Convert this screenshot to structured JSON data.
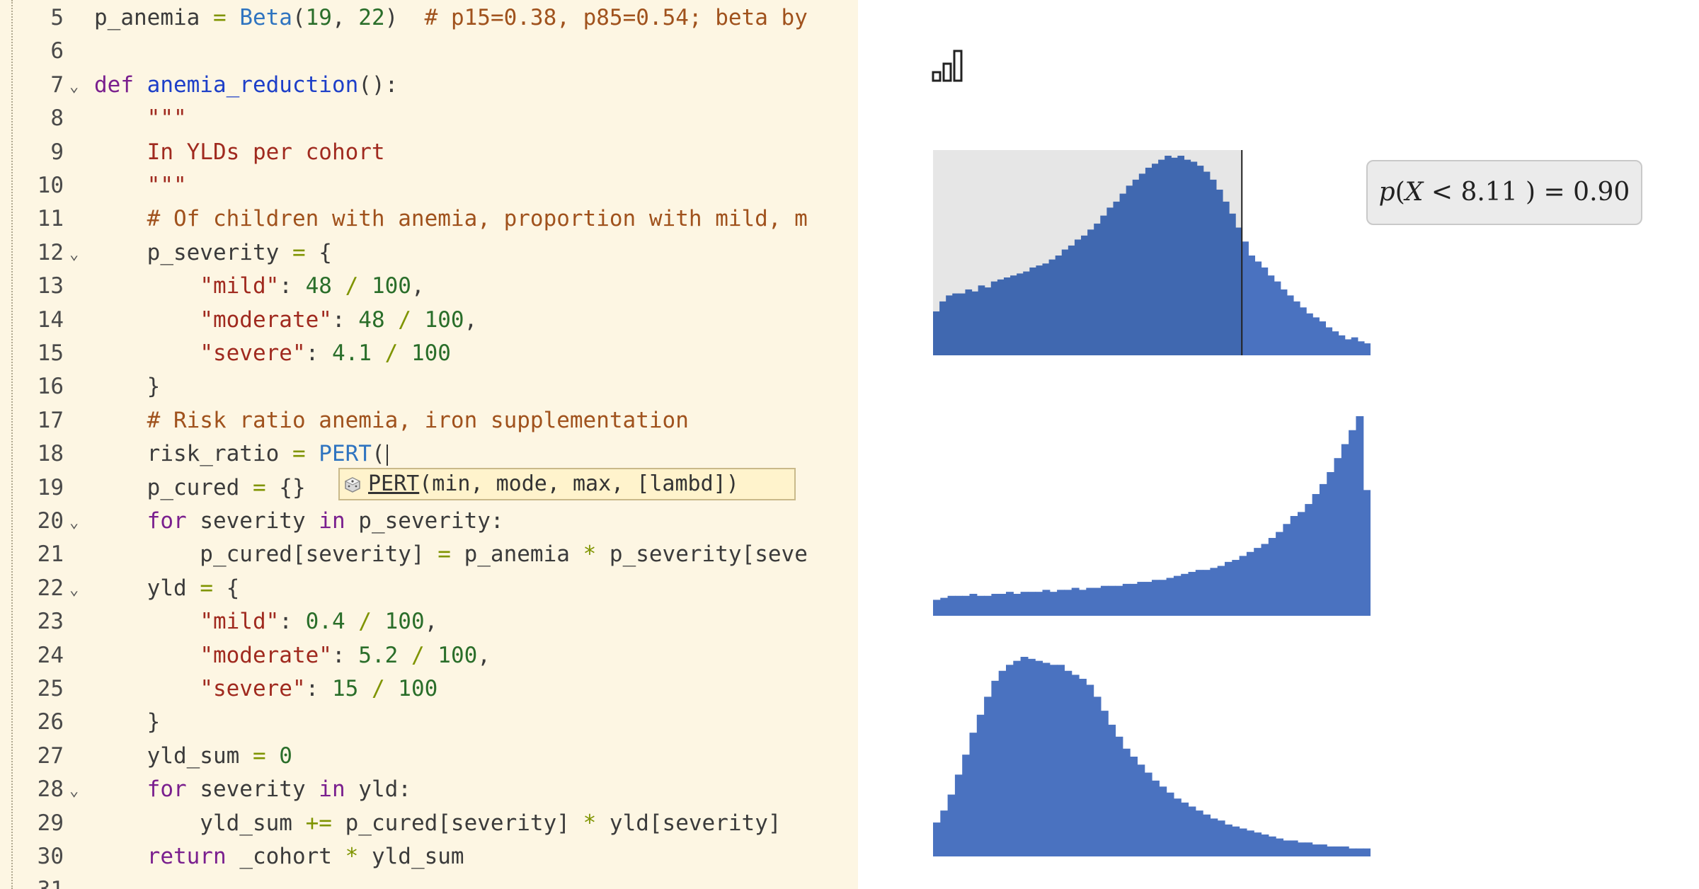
{
  "editor": {
    "lines": [
      {
        "n": "5",
        "fold": false,
        "tokens": [
          {
            "t": "p_anemia "
          },
          {
            "t": "= ",
            "c": "op"
          },
          {
            "t": "Beta",
            "c": "builtin"
          },
          {
            "t": "("
          },
          {
            "t": "19",
            "c": "num"
          },
          {
            "t": ", "
          },
          {
            "t": "22",
            "c": "num"
          },
          {
            "t": ")  "
          },
          {
            "t": "# p15=0.38, p85=0.54; beta by",
            "c": "cm"
          }
        ]
      },
      {
        "n": "6",
        "fold": false,
        "tokens": []
      },
      {
        "n": "7",
        "fold": true,
        "tokens": [
          {
            "t": "def ",
            "c": "kw"
          },
          {
            "t": "anemia_reduction",
            "c": "fn"
          },
          {
            "t": "():"
          }
        ]
      },
      {
        "n": "8",
        "fold": false,
        "tokens": [
          {
            "t": "    "
          },
          {
            "t": "\"\"\"",
            "c": "str"
          }
        ]
      },
      {
        "n": "9",
        "fold": false,
        "tokens": [
          {
            "t": "    "
          },
          {
            "t": "In YLDs per cohort",
            "c": "str"
          }
        ]
      },
      {
        "n": "10",
        "fold": false,
        "tokens": [
          {
            "t": "    "
          },
          {
            "t": "\"\"\"",
            "c": "str"
          }
        ]
      },
      {
        "n": "11",
        "fold": false,
        "tokens": [
          {
            "t": "    "
          },
          {
            "t": "# Of children with anemia, proportion with mild, m",
            "c": "cm"
          }
        ]
      },
      {
        "n": "12",
        "fold": true,
        "tokens": [
          {
            "t": "    p_severity "
          },
          {
            "t": "= ",
            "c": "op"
          },
          {
            "t": "{"
          }
        ]
      },
      {
        "n": "13",
        "fold": false,
        "tokens": [
          {
            "t": "        "
          },
          {
            "t": "\"mild\"",
            "c": "str"
          },
          {
            "t": ": "
          },
          {
            "t": "48",
            "c": "num"
          },
          {
            "t": " / ",
            "c": "op"
          },
          {
            "t": "100",
            "c": "num"
          },
          {
            "t": ","
          }
        ]
      },
      {
        "n": "14",
        "fold": false,
        "tokens": [
          {
            "t": "        "
          },
          {
            "t": "\"moderate\"",
            "c": "str"
          },
          {
            "t": ": "
          },
          {
            "t": "48",
            "c": "num"
          },
          {
            "t": " / ",
            "c": "op"
          },
          {
            "t": "100",
            "c": "num"
          },
          {
            "t": ","
          }
        ]
      },
      {
        "n": "15",
        "fold": false,
        "tokens": [
          {
            "t": "        "
          },
          {
            "t": "\"severe\"",
            "c": "str"
          },
          {
            "t": ": "
          },
          {
            "t": "4.1",
            "c": "num"
          },
          {
            "t": " / ",
            "c": "op"
          },
          {
            "t": "100",
            "c": "num"
          }
        ]
      },
      {
        "n": "16",
        "fold": false,
        "tokens": [
          {
            "t": "    }"
          }
        ]
      },
      {
        "n": "17",
        "fold": false,
        "tokens": [
          {
            "t": "    "
          },
          {
            "t": "# Risk ratio anemia, iron supplementation",
            "c": "cm"
          }
        ]
      },
      {
        "n": "18",
        "fold": false,
        "cursor": true,
        "tokens": [
          {
            "t": "    risk_ratio "
          },
          {
            "t": "= ",
            "c": "op"
          },
          {
            "t": "PERT",
            "c": "builtin"
          },
          {
            "t": "("
          }
        ]
      },
      {
        "n": "19",
        "fold": false,
        "tokens": [
          {
            "t": "    p_cured "
          },
          {
            "t": "= ",
            "c": "op"
          },
          {
            "t": "{}"
          }
        ]
      },
      {
        "n": "20",
        "fold": true,
        "tokens": [
          {
            "t": "    "
          },
          {
            "t": "for ",
            "c": "kw"
          },
          {
            "t": "severity "
          },
          {
            "t": "in ",
            "c": "kw"
          },
          {
            "t": "p_severity:"
          }
        ]
      },
      {
        "n": "21",
        "fold": false,
        "tokens": [
          {
            "t": "        p_cured[severity] "
          },
          {
            "t": "= ",
            "c": "op"
          },
          {
            "t": "p_anemia "
          },
          {
            "t": "* ",
            "c": "op"
          },
          {
            "t": "p_severity[seve"
          }
        ]
      },
      {
        "n": "22",
        "fold": true,
        "tokens": [
          {
            "t": "    yld "
          },
          {
            "t": "= ",
            "c": "op"
          },
          {
            "t": "{"
          }
        ]
      },
      {
        "n": "23",
        "fold": false,
        "tokens": [
          {
            "t": "        "
          },
          {
            "t": "\"mild\"",
            "c": "str"
          },
          {
            "t": ": "
          },
          {
            "t": "0.4",
            "c": "num"
          },
          {
            "t": " / ",
            "c": "op"
          },
          {
            "t": "100",
            "c": "num"
          },
          {
            "t": ","
          }
        ]
      },
      {
        "n": "24",
        "fold": false,
        "tokens": [
          {
            "t": "        "
          },
          {
            "t": "\"moderate\"",
            "c": "str"
          },
          {
            "t": ": "
          },
          {
            "t": "5.2",
            "c": "num"
          },
          {
            "t": " / ",
            "c": "op"
          },
          {
            "t": "100",
            "c": "num"
          },
          {
            "t": ","
          }
        ]
      },
      {
        "n": "25",
        "fold": false,
        "tokens": [
          {
            "t": "        "
          },
          {
            "t": "\"severe\"",
            "c": "str"
          },
          {
            "t": ": "
          },
          {
            "t": "15",
            "c": "num"
          },
          {
            "t": " / ",
            "c": "op"
          },
          {
            "t": "100",
            "c": "num"
          }
        ]
      },
      {
        "n": "26",
        "fold": false,
        "tokens": [
          {
            "t": "    }"
          }
        ]
      },
      {
        "n": "27",
        "fold": false,
        "tokens": [
          {
            "t": "    yld_sum "
          },
          {
            "t": "= ",
            "c": "op"
          },
          {
            "t": "0",
            "c": "num"
          }
        ]
      },
      {
        "n": "28",
        "fold": true,
        "tokens": [
          {
            "t": "    "
          },
          {
            "t": "for ",
            "c": "kw"
          },
          {
            "t": "severity "
          },
          {
            "t": "in ",
            "c": "kw"
          },
          {
            "t": "yld:"
          }
        ]
      },
      {
        "n": "29",
        "fold": false,
        "tokens": [
          {
            "t": "        yld_sum "
          },
          {
            "t": "+= ",
            "c": "op"
          },
          {
            "t": "p_cured[severity] "
          },
          {
            "t": "* ",
            "c": "op"
          },
          {
            "t": "yld[severity]"
          }
        ]
      },
      {
        "n": "30",
        "fold": false,
        "tokens": [
          {
            "t": "    "
          },
          {
            "t": "return ",
            "c": "kw"
          },
          {
            "t": "_cohort "
          },
          {
            "t": "* ",
            "c": "op"
          },
          {
            "t": "yld_sum"
          }
        ]
      },
      {
        "n": "31",
        "fold": false,
        "tokens": []
      }
    ],
    "fold_glyph": "⌄",
    "tooltip": {
      "function_name": "PERT",
      "signature": "(min, mode, max, [lambd])",
      "icon": "dice-icon"
    }
  },
  "panel": {
    "icon": "bar-chart-icon",
    "probability": {
      "p": "p",
      "open": "(",
      "var": "X",
      "lt": " < ",
      "value": "8.11",
      "close": " )",
      "eq": " = ",
      "result": "0.90"
    }
  },
  "colors": {
    "bar": "#4a72c0",
    "bar_highlight": "#4068b0",
    "shade": "#e6e6e6",
    "threshold_line": "#222222"
  },
  "chart_data": [
    {
      "type": "bar",
      "highlight_fraction": 0.9,
      "highlight_count": 48,
      "values": [
        0.22,
        0.27,
        0.3,
        0.31,
        0.31,
        0.33,
        0.32,
        0.35,
        0.34,
        0.37,
        0.38,
        0.39,
        0.4,
        0.41,
        0.42,
        0.44,
        0.45,
        0.46,
        0.48,
        0.5,
        0.53,
        0.55,
        0.58,
        0.6,
        0.63,
        0.66,
        0.7,
        0.74,
        0.77,
        0.81,
        0.85,
        0.88,
        0.91,
        0.94,
        0.96,
        0.98,
        1.0,
        0.99,
        1.0,
        0.98,
        0.97,
        0.95,
        0.92,
        0.88,
        0.83,
        0.77,
        0.71,
        0.64,
        0.57,
        0.5,
        0.47,
        0.44,
        0.4,
        0.37,
        0.33,
        0.3,
        0.27,
        0.24,
        0.21,
        0.19,
        0.17,
        0.14,
        0.12,
        0.1,
        0.08,
        0.09,
        0.07,
        0.06
      ]
    },
    {
      "type": "bar",
      "values": [
        0.08,
        0.09,
        0.1,
        0.1,
        0.1,
        0.11,
        0.1,
        0.1,
        0.11,
        0.11,
        0.12,
        0.11,
        0.12,
        0.12,
        0.12,
        0.13,
        0.12,
        0.13,
        0.13,
        0.14,
        0.13,
        0.14,
        0.14,
        0.15,
        0.15,
        0.15,
        0.16,
        0.16,
        0.17,
        0.17,
        0.18,
        0.18,
        0.19,
        0.2,
        0.21,
        0.22,
        0.23,
        0.23,
        0.24,
        0.25,
        0.27,
        0.28,
        0.3,
        0.32,
        0.34,
        0.36,
        0.39,
        0.42,
        0.46,
        0.5,
        0.52,
        0.56,
        0.61,
        0.66,
        0.72,
        0.79,
        0.86,
        0.93,
        1.0,
        0.63
      ]
    },
    {
      "type": "bar",
      "values": [
        0.17,
        0.23,
        0.31,
        0.41,
        0.51,
        0.62,
        0.71,
        0.8,
        0.88,
        0.93,
        0.96,
        0.98,
        1.0,
        0.99,
        0.98,
        0.97,
        0.96,
        0.96,
        0.93,
        0.91,
        0.89,
        0.86,
        0.8,
        0.73,
        0.66,
        0.6,
        0.54,
        0.5,
        0.46,
        0.42,
        0.38,
        0.35,
        0.32,
        0.29,
        0.27,
        0.25,
        0.23,
        0.21,
        0.19,
        0.18,
        0.16,
        0.15,
        0.14,
        0.13,
        0.12,
        0.11,
        0.1,
        0.09,
        0.08,
        0.08,
        0.07,
        0.07,
        0.06,
        0.06,
        0.05,
        0.05,
        0.05,
        0.04,
        0.04,
        0.04
      ]
    }
  ]
}
